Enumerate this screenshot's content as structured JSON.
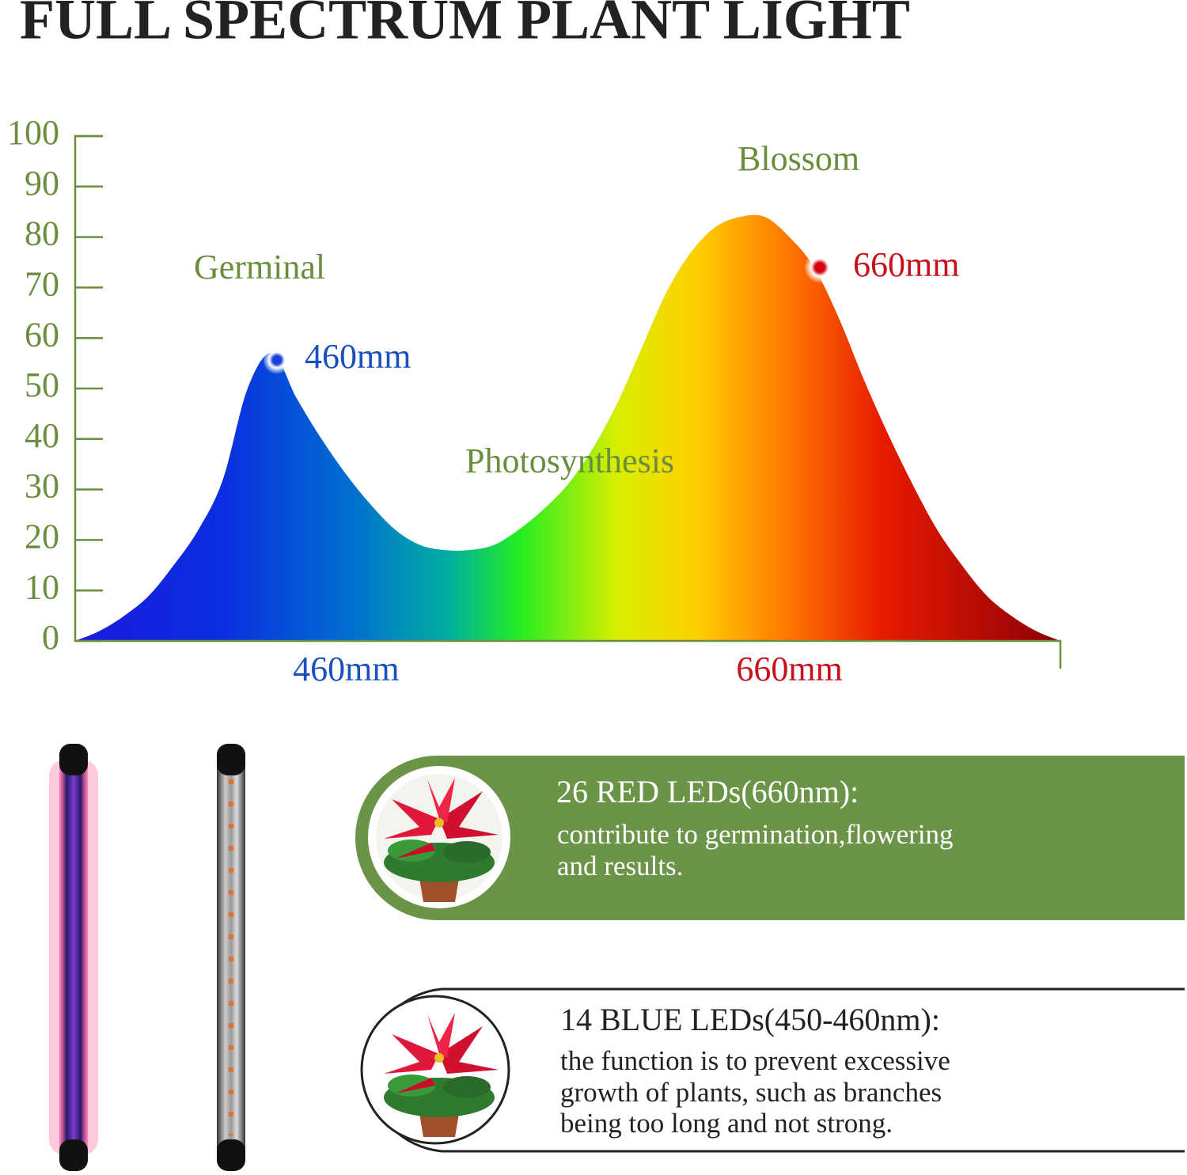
{
  "chart_data": {
    "type": "area",
    "title": "FULL SPECTRUM PLANT LIGHT",
    "categories": [
      null,
      null,
      null,
      null,
      null,
      null,
      null,
      null,
      null,
      null,
      null,
      "460mm",
      null,
      null,
      null,
      null,
      null,
      null,
      null,
      null,
      null,
      null,
      null,
      null,
      null,
      null,
      null,
      null,
      null,
      "660mm",
      null,
      null,
      null,
      null,
      null,
      null,
      null,
      null,
      null,
      null,
      null
    ],
    "values": [
      0,
      2,
      5,
      9,
      15,
      22,
      32,
      50,
      57,
      48,
      40,
      33,
      27,
      22,
      19,
      18,
      18,
      19,
      22,
      26,
      31,
      38,
      47,
      58,
      69,
      77,
      82,
      84,
      84,
      80,
      74,
      64,
      52,
      41,
      31,
      22,
      15,
      9,
      5,
      2,
      0
    ],
    "ylim": [
      0,
      100
    ],
    "yticks": [
      0,
      10,
      20,
      30,
      40,
      50,
      60,
      70,
      80,
      90,
      100
    ],
    "annotations": [
      "Germinal",
      "460mm",
      "Photosynthesis",
      "Blossom",
      "660mm"
    ]
  },
  "panels": [
    {
      "title": "26 RED LEDs(660nm):",
      "lines": [
        "contribute to germination,flowering",
        "and results."
      ]
    },
    {
      "title": "14 BLUE LEDs(450-460nm):",
      "lines": [
        "the function is to prevent excessive",
        "growth of plants, such as branches",
        "being too long and not strong."
      ]
    }
  ]
}
